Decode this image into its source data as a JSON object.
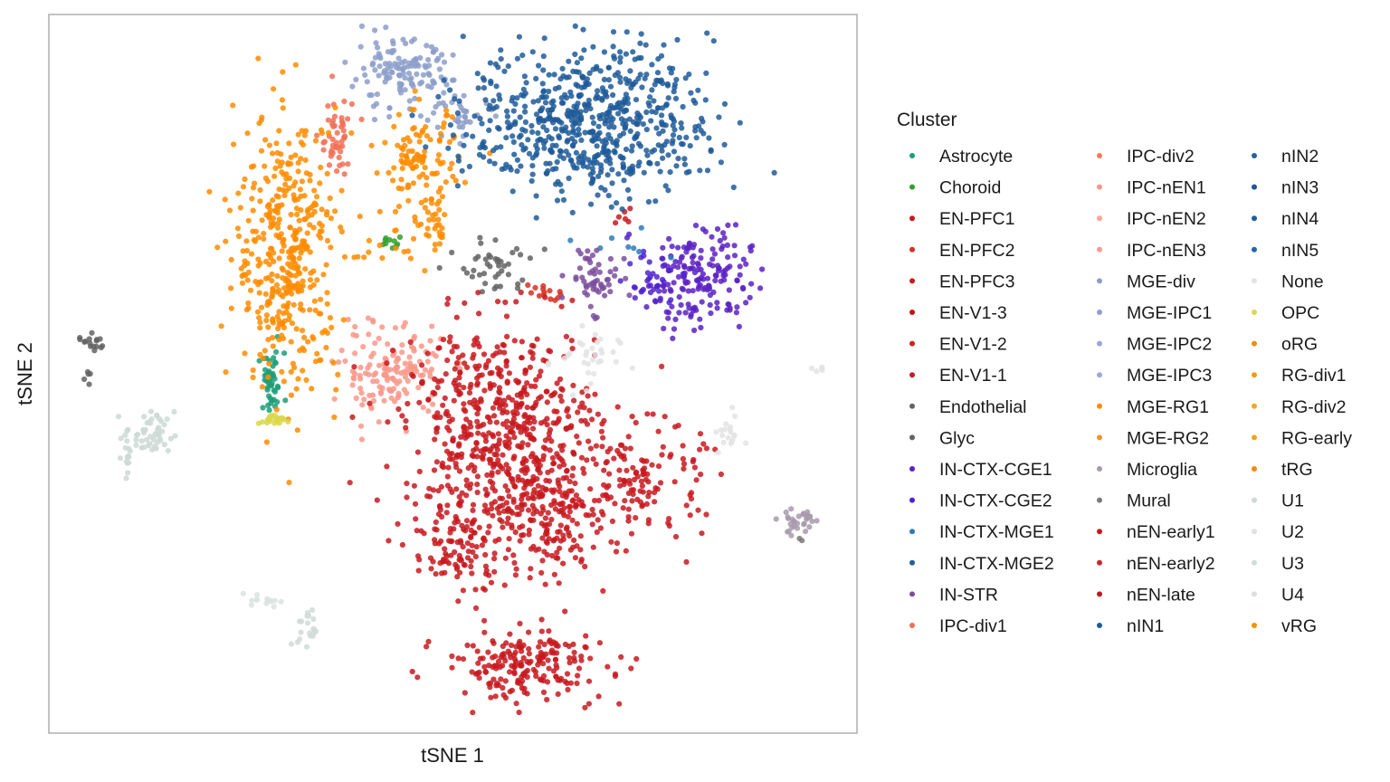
{
  "chart_data": {
    "type": "scatter",
    "xlabel": "tSNE 1",
    "ylabel": "tSNE 2",
    "xlim": [
      0,
      100
    ],
    "ylim": [
      0,
      100
    ],
    "grid": false,
    "axis_ticks": false,
    "legend": {
      "title": "Cluster",
      "placement": "right",
      "columns": 3
    },
    "series": [
      {
        "name": "Astrocyte",
        "color": "#1b9e77",
        "clusters": [
          {
            "x": 27.5,
            "y": 48.6,
            "sx": 0.8,
            "sy": 2.2,
            "n": 45
          }
        ]
      },
      {
        "name": "Choroid",
        "color": "#33a02c",
        "clusters": [
          {
            "x": 42.5,
            "y": 68.0,
            "sx": 0.7,
            "sy": 0.5,
            "n": 10
          }
        ]
      },
      {
        "name": "EN-PFC1",
        "color": "#cb181d",
        "clusters": [
          {
            "x": 71.5,
            "y": 72.0,
            "sx": 1.0,
            "sy": 0.6,
            "n": 6
          }
        ]
      },
      {
        "name": "EN-PFC2",
        "color": "#d7301f",
        "clusters": [
          {
            "x": 61.0,
            "y": 61.5,
            "sx": 1.0,
            "sy": 0.6,
            "n": 14
          }
        ]
      },
      {
        "name": "EN-PFC3",
        "color": "#c81b1b",
        "clusters": []
      },
      {
        "name": "EN-V1-3",
        "color": "#c41414",
        "clusters": []
      },
      {
        "name": "EN-V1-2",
        "color": "#d12222",
        "clusters": []
      },
      {
        "name": "EN-V1-1",
        "color": "#c91d1d",
        "clusters": []
      },
      {
        "name": "Endothelial",
        "color": "#636363",
        "clusters": [
          {
            "x": 5.5,
            "y": 54.0,
            "sx": 0.9,
            "sy": 0.8,
            "n": 16
          },
          {
            "x": 4.8,
            "y": 49.5,
            "sx": 0.2,
            "sy": 0.5,
            "n": 5
          }
        ]
      },
      {
        "name": "Glyc",
        "color": "#636363",
        "clusters": [
          {
            "x": 55.5,
            "y": 65.0,
            "sx": 2.2,
            "sy": 2.0,
            "n": 42
          }
        ]
      },
      {
        "name": "IN-CTX-CGE1",
        "color": "#5b21c4",
        "clusters": [
          {
            "x": 80.5,
            "y": 63.5,
            "sx": 3.2,
            "sy": 3.6,
            "n": 175
          }
        ]
      },
      {
        "name": "IN-CTX-CGE2",
        "color": "#4f23d0",
        "clusters": [
          {
            "x": 74.0,
            "y": 63.5,
            "sx": 2.0,
            "sy": 2.0,
            "n": 30
          }
        ]
      },
      {
        "name": "IN-CTX-MGE1",
        "color": "#2b7bba",
        "clusters": [
          {
            "x": 70.5,
            "y": 67.5,
            "sx": 2.5,
            "sy": 1.2,
            "n": 8
          }
        ]
      },
      {
        "name": "IN-CTX-MGE2",
        "color": "#1f5f9f",
        "clusters": []
      },
      {
        "name": "IN-STR",
        "color": "#7b4f9d",
        "clusters": [
          {
            "x": 67.5,
            "y": 63.5,
            "sx": 1.6,
            "sy": 2.2,
            "n": 55
          }
        ]
      },
      {
        "name": "IPC-div1",
        "color": "#f26e55",
        "clusters": [
          {
            "x": 35.5,
            "y": 82.5,
            "sx": 1.1,
            "sy": 3.0,
            "n": 48
          }
        ]
      },
      {
        "name": "IPC-div2",
        "color": "#f4795f",
        "clusters": []
      },
      {
        "name": "IPC-nEN1",
        "color": "#f9988a",
        "clusters": [
          {
            "x": 42.5,
            "y": 50.5,
            "sx": 3.2,
            "sy": 3.2,
            "n": 145
          }
        ]
      },
      {
        "name": "IPC-nEN2",
        "color": "#fba594",
        "clusters": []
      },
      {
        "name": "IPC-nEN3",
        "color": "#f79d8c",
        "clusters": []
      },
      {
        "name": "MGE-div",
        "color": "#8c9dc9",
        "clusters": [
          {
            "x": 43.5,
            "y": 91.5,
            "sx": 3.2,
            "sy": 2.4,
            "n": 130
          },
          {
            "x": 51.5,
            "y": 86.0,
            "sx": 1.8,
            "sy": 1.2,
            "n": 30
          }
        ]
      },
      {
        "name": "MGE-IPC1",
        "color": "#8fa1cf",
        "clusters": []
      },
      {
        "name": "MGE-IPC2",
        "color": "#97a8d3",
        "clusters": []
      },
      {
        "name": "MGE-IPC3",
        "color": "#9aabd4",
        "clusters": []
      },
      {
        "name": "MGE-RG1",
        "color": "#ff8c00",
        "clusters": [
          {
            "x": 29.5,
            "y": 67.0,
            "sx": 3.2,
            "sy": 9.5,
            "n": 420
          },
          {
            "x": 46.0,
            "y": 79.5,
            "sx": 2.4,
            "sy": 3.5,
            "n": 110
          },
          {
            "x": 48.0,
            "y": 70.0,
            "sx": 0.9,
            "sy": 1.6,
            "n": 24
          },
          {
            "x": 42.5,
            "y": 67.0,
            "sx": 3.5,
            "sy": 2.8,
            "n": 22
          }
        ]
      },
      {
        "name": "MGE-RG2",
        "color": "#f7931e",
        "clusters": []
      },
      {
        "name": "Microglia",
        "color": "#a89aad",
        "clusters": [
          {
            "x": 93.0,
            "y": 29.5,
            "sx": 1.3,
            "sy": 1.0,
            "n": 32
          }
        ]
      },
      {
        "name": "Mural",
        "color": "#7a7a7a",
        "clusters": [
          {
            "x": 93.0,
            "y": 27.0,
            "sx": 0.2,
            "sy": 0.3,
            "n": 2
          }
        ]
      },
      {
        "name": "nEN-early1",
        "color": "#c8191e",
        "clusters": [
          {
            "x": 56.0,
            "y": 42.0,
            "sx": 6.0,
            "sy": 7.5,
            "n": 620
          },
          {
            "x": 62.0,
            "y": 29.5,
            "sx": 3.0,
            "sy": 5.0,
            "n": 150
          },
          {
            "x": 73.0,
            "y": 35.0,
            "sx": 4.0,
            "sy": 4.0,
            "n": 140
          },
          {
            "x": 50.5,
            "y": 25.5,
            "sx": 2.8,
            "sy": 3.5,
            "n": 95
          },
          {
            "x": 59.0,
            "y": 9.5,
            "sx": 5.0,
            "sy": 2.4,
            "n": 200
          }
        ]
      },
      {
        "name": "nEN-early2",
        "color": "#d0252a",
        "clusters": []
      },
      {
        "name": "nEN-late",
        "color": "#c4161c",
        "clusters": []
      },
      {
        "name": "nIN1",
        "color": "#1f5a99",
        "clusters": [
          {
            "x": 67.0,
            "y": 85.0,
            "sx": 7.5,
            "sy": 5.2,
            "n": 640
          }
        ]
      },
      {
        "name": "nIN2",
        "color": "#2361a1",
        "clusters": []
      },
      {
        "name": "nIN3",
        "color": "#1c5796",
        "clusters": []
      },
      {
        "name": "nIN4",
        "color": "#205d9c",
        "clusters": []
      },
      {
        "name": "nIN5",
        "color": "#2566a6",
        "clusters": []
      },
      {
        "name": "None",
        "color": "#e3e3e3",
        "clusters": [
          {
            "x": 66.5,
            "y": 51.5,
            "sx": 2.0,
            "sy": 2.6,
            "n": 32
          },
          {
            "x": 84.0,
            "y": 42.0,
            "sx": 0.8,
            "sy": 1.6,
            "n": 18
          },
          {
            "x": 95.0,
            "y": 50.5,
            "sx": 0.5,
            "sy": 0.2,
            "n": 5
          }
        ]
      },
      {
        "name": "OPC",
        "color": "#d9d84a",
        "clusters": [
          {
            "x": 27.5,
            "y": 43.5,
            "sx": 0.8,
            "sy": 0.4,
            "n": 22
          }
        ]
      },
      {
        "name": "oRG",
        "color": "#f28c00",
        "clusters": []
      },
      {
        "name": "RG-div1",
        "color": "#f59a12",
        "clusters": []
      },
      {
        "name": "RG-div2",
        "color": "#f5a623",
        "clusters": []
      },
      {
        "name": "RG-early",
        "color": "#f7a21b",
        "clusters": []
      },
      {
        "name": "tRG",
        "color": "#f28a12",
        "clusters": []
      },
      {
        "name": "U1",
        "color": "#cdd9d5",
        "clusters": [
          {
            "x": 12.5,
            "y": 41.5,
            "sx": 1.5,
            "sy": 1.6,
            "n": 52
          },
          {
            "x": 9.8,
            "y": 38.5,
            "sx": 0.4,
            "sy": 1.4,
            "n": 12
          }
        ]
      },
      {
        "name": "U2",
        "color": "#dbe3e0",
        "clusters": [
          {
            "x": 26.5,
            "y": 18.5,
            "sx": 1.0,
            "sy": 0.5,
            "n": 14
          }
        ]
      },
      {
        "name": "U3",
        "color": "#d1dbd7",
        "clusters": [
          {
            "x": 32.0,
            "y": 14.5,
            "sx": 0.6,
            "sy": 1.4,
            "n": 20
          }
        ]
      },
      {
        "name": "U4",
        "color": "#d7e0dc",
        "clusters": []
      },
      {
        "name": "vRG",
        "color": "#f39200",
        "clusters": []
      }
    ]
  }
}
